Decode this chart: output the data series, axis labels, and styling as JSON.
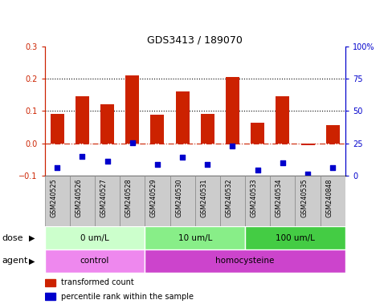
{
  "title": "GDS3413 / 189070",
  "samples": [
    "GSM240525",
    "GSM240526",
    "GSM240527",
    "GSM240528",
    "GSM240529",
    "GSM240530",
    "GSM240531",
    "GSM240532",
    "GSM240533",
    "GSM240534",
    "GSM240535",
    "GSM240848"
  ],
  "bar_values": [
    0.09,
    0.145,
    0.12,
    0.21,
    0.088,
    0.16,
    0.09,
    0.205,
    0.063,
    0.145,
    -0.005,
    0.055
  ],
  "scatter_values": [
    -0.075,
    -0.04,
    -0.055,
    0.002,
    -0.065,
    -0.043,
    -0.065,
    -0.008,
    -0.083,
    -0.06,
    -0.095,
    -0.075
  ],
  "bar_color": "#cc2200",
  "scatter_color": "#0000cc",
  "zero_line_color": "#cc2200",
  "ylim": [
    -0.1,
    0.3
  ],
  "yticks_left": [
    -0.1,
    0.0,
    0.1,
    0.2,
    0.3
  ],
  "yticks_right": [
    0,
    25,
    50,
    75,
    100
  ],
  "hline_y": [
    0.1,
    0.2
  ],
  "dose_groups": [
    {
      "label": "0 um/L",
      "start": 0,
      "end": 4,
      "color": "#ccffcc"
    },
    {
      "label": "10 um/L",
      "start": 4,
      "end": 8,
      "color": "#88ee88"
    },
    {
      "label": "100 um/L",
      "start": 8,
      "end": 12,
      "color": "#44cc44"
    }
  ],
  "agent_groups": [
    {
      "label": "control",
      "start": 0,
      "end": 4,
      "color": "#ee88ee"
    },
    {
      "label": "homocysteine",
      "start": 4,
      "end": 12,
      "color": "#cc44cc"
    }
  ],
  "dose_label": "dose",
  "agent_label": "agent",
  "legend_bar_label": "transformed count",
  "legend_scatter_label": "percentile rank within the sample",
  "sample_box_color": "#cccccc",
  "sample_box_edge": "#888888"
}
